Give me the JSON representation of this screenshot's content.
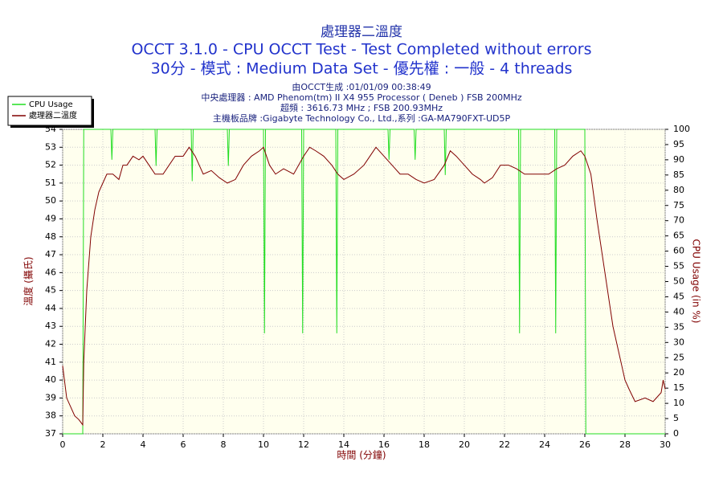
{
  "chart_data": {
    "type": "line",
    "title": "處理器二溫度",
    "title_lines": [
      "OCCT 3.1.0 - CPU OCCT Test - Test Completed without errors",
      "30分 - 模式 : Medium Data Set - 優先權 : 一般 - 4 threads"
    ],
    "info_lines": [
      "由OCCT生成 :01/01/09 00:38:49",
      "中央處理器 : AMD Phenom(tm) II X4 955 Processor ( Deneb ) FSB 200MHz",
      "超頻 : 3616.73 MHz ; FSB 200.93MHz",
      "主機板品牌 :Gigabyte Technology Co., Ltd.,系列 :GA-MA790FXT-UD5P"
    ],
    "x_label": "時間 (分鐘)",
    "y_label": "溫度 (攝氏)",
    "y2_label": "CPU Usage (in %)",
    "xlim": [
      0,
      30
    ],
    "xticks": [
      0,
      2,
      4,
      6,
      8,
      10,
      12,
      14,
      16,
      18,
      20,
      22,
      24,
      26,
      28,
      30
    ],
    "ylim": [
      37,
      54
    ],
    "yticks": [
      37,
      38,
      39,
      40,
      41,
      42,
      43,
      44,
      45,
      46,
      47,
      48,
      49,
      50,
      51,
      52,
      53,
      54
    ],
    "y2lim": [
      0,
      100
    ],
    "y2ticks": [
      0,
      5,
      10,
      15,
      20,
      25,
      30,
      35,
      40,
      45,
      50,
      55,
      60,
      65,
      70,
      75,
      80,
      85,
      90,
      95,
      100
    ],
    "grid": true,
    "legend": "top-left",
    "series": [
      {
        "name": "CPU Usage",
        "color": "#22dd22",
        "axis": "y2",
        "x": [
          0,
          1.0,
          1.05,
          2.4,
          2.45,
          2.5,
          4.6,
          4.65,
          4.7,
          6.4,
          6.45,
          6.5,
          8.2,
          8.25,
          8.3,
          10.0,
          10.05,
          10.1,
          11.9,
          11.95,
          12.0,
          13.6,
          13.65,
          13.7,
          16.2,
          16.25,
          16.3,
          17.5,
          17.55,
          17.6,
          19.0,
          19.05,
          19.1,
          22.7,
          22.75,
          22.8,
          24.5,
          24.55,
          24.6,
          26.0,
          26.05,
          30
        ],
        "values": [
          0,
          0,
          100,
          100,
          90,
          100,
          100,
          88,
          100,
          100,
          83,
          100,
          100,
          88,
          100,
          100,
          33,
          100,
          100,
          33,
          100,
          100,
          33,
          100,
          100,
          90,
          100,
          100,
          90,
          100,
          100,
          85,
          100,
          100,
          33,
          100,
          100,
          33,
          100,
          100,
          0,
          0
        ]
      },
      {
        "name": "處理器二溫度",
        "color": "#800000",
        "x": [
          0,
          0.2,
          0.4,
          0.6,
          0.8,
          1.0,
          1.05,
          1.2,
          1.4,
          1.6,
          1.8,
          2.0,
          2.2,
          2.5,
          2.8,
          3.0,
          3.2,
          3.5,
          3.8,
          4.0,
          4.3,
          4.6,
          5.0,
          5.3,
          5.6,
          6.0,
          6.3,
          6.6,
          7.0,
          7.4,
          7.8,
          8.2,
          8.6,
          9.0,
          9.4,
          9.8,
          10.0,
          10.3,
          10.6,
          11.0,
          11.5,
          12.0,
          12.3,
          12.6,
          13.0,
          13.4,
          13.7,
          14.0,
          14.5,
          15.0,
          15.3,
          15.6,
          16.0,
          16.4,
          16.8,
          17.2,
          17.6,
          18.0,
          18.5,
          19.0,
          19.3,
          19.6,
          20.0,
          20.4,
          20.8,
          21.0,
          21.4,
          21.8,
          22.2,
          22.6,
          23.0,
          23.4,
          23.8,
          24.2,
          24.6,
          25.0,
          25.4,
          25.8,
          26.0,
          26.3,
          26.6,
          27.0,
          27.4,
          27.8,
          28.0,
          28.2,
          28.5,
          29.0,
          29.4,
          29.8,
          29.9,
          30
        ],
        "values": [
          40.8,
          39,
          38.5,
          38,
          37.8,
          37.5,
          41,
          45,
          48,
          49.5,
          50.5,
          51,
          51.5,
          51.5,
          51.2,
          52,
          52,
          52.5,
          52.3,
          52.5,
          52,
          51.5,
          51.5,
          52,
          52.5,
          52.5,
          53,
          52.5,
          51.5,
          51.7,
          51.3,
          51,
          51.2,
          52,
          52.5,
          52.8,
          53,
          52,
          51.5,
          51.8,
          51.5,
          52.5,
          53,
          52.8,
          52.5,
          52,
          51.5,
          51.2,
          51.5,
          52,
          52.5,
          53,
          52.5,
          52,
          51.5,
          51.5,
          51.2,
          51,
          51.2,
          52,
          52.8,
          52.5,
          52,
          51.5,
          51.2,
          51,
          51.3,
          52,
          52,
          51.8,
          51.5,
          51.5,
          51.5,
          51.5,
          51.8,
          52,
          52.5,
          52.8,
          52.5,
          51.5,
          49,
          46,
          43,
          41,
          40,
          39.5,
          38.8,
          39,
          38.8,
          39.3,
          40,
          39.5
        ]
      }
    ]
  }
}
